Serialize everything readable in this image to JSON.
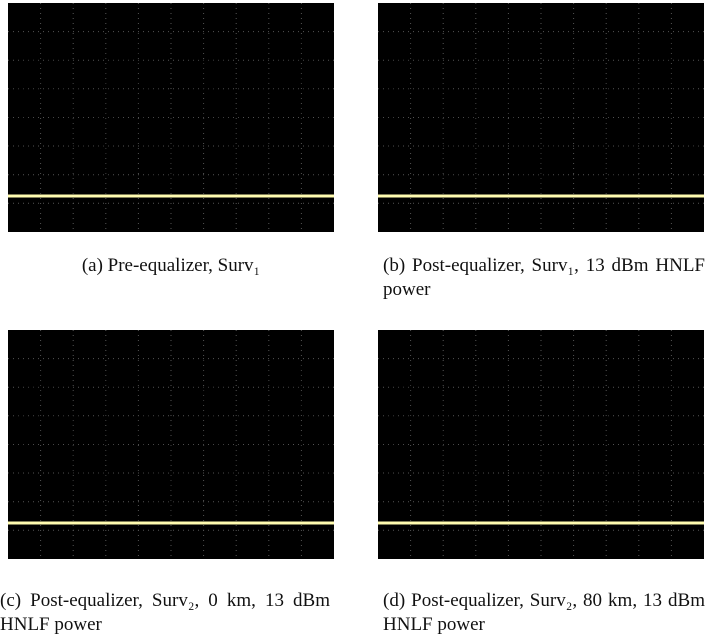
{
  "panels": [
    {
      "caption": "(a) Pre-equalizer, Surv₁"
    },
    {
      "caption": "(b) Post-equalizer, Surv₁, 13 dBm HNLF power"
    },
    {
      "caption": "(c) Post-equalizer, Surv₂, 0 km, 13 dBm HNLF power"
    },
    {
      "caption": "(d) Post-equalizer, Surv₂, 80 km, 13 dBm HNLF power"
    }
  ]
}
